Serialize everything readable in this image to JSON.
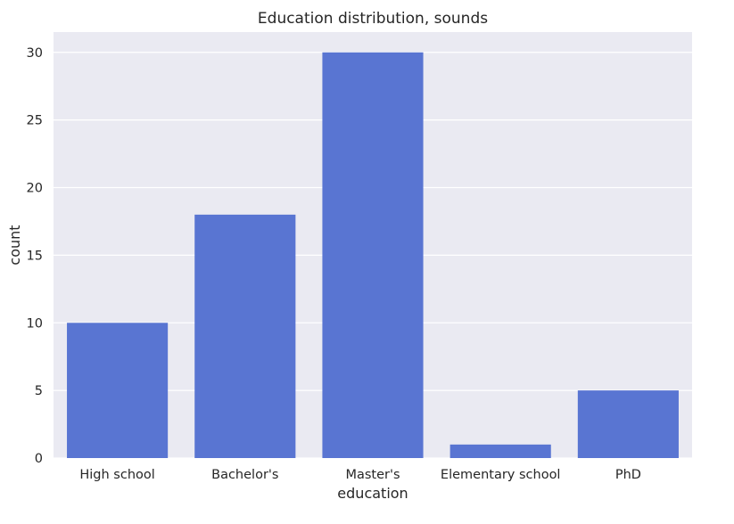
{
  "chart_data": {
    "type": "bar",
    "title": "Education distribution, sounds",
    "xlabel": "education",
    "ylabel": "count",
    "categories": [
      "High school",
      "Bachelor's",
      "Master's",
      "Elementary school",
      "PhD"
    ],
    "values": [
      10,
      18,
      30,
      1,
      5
    ],
    "yticks": [
      "0",
      "5",
      "10",
      "15",
      "20",
      "25",
      "30"
    ],
    "ylim": [
      0,
      31.5
    ],
    "grid": true,
    "bar_color": "#5975d2",
    "background_color": "#eaeaf2"
  }
}
